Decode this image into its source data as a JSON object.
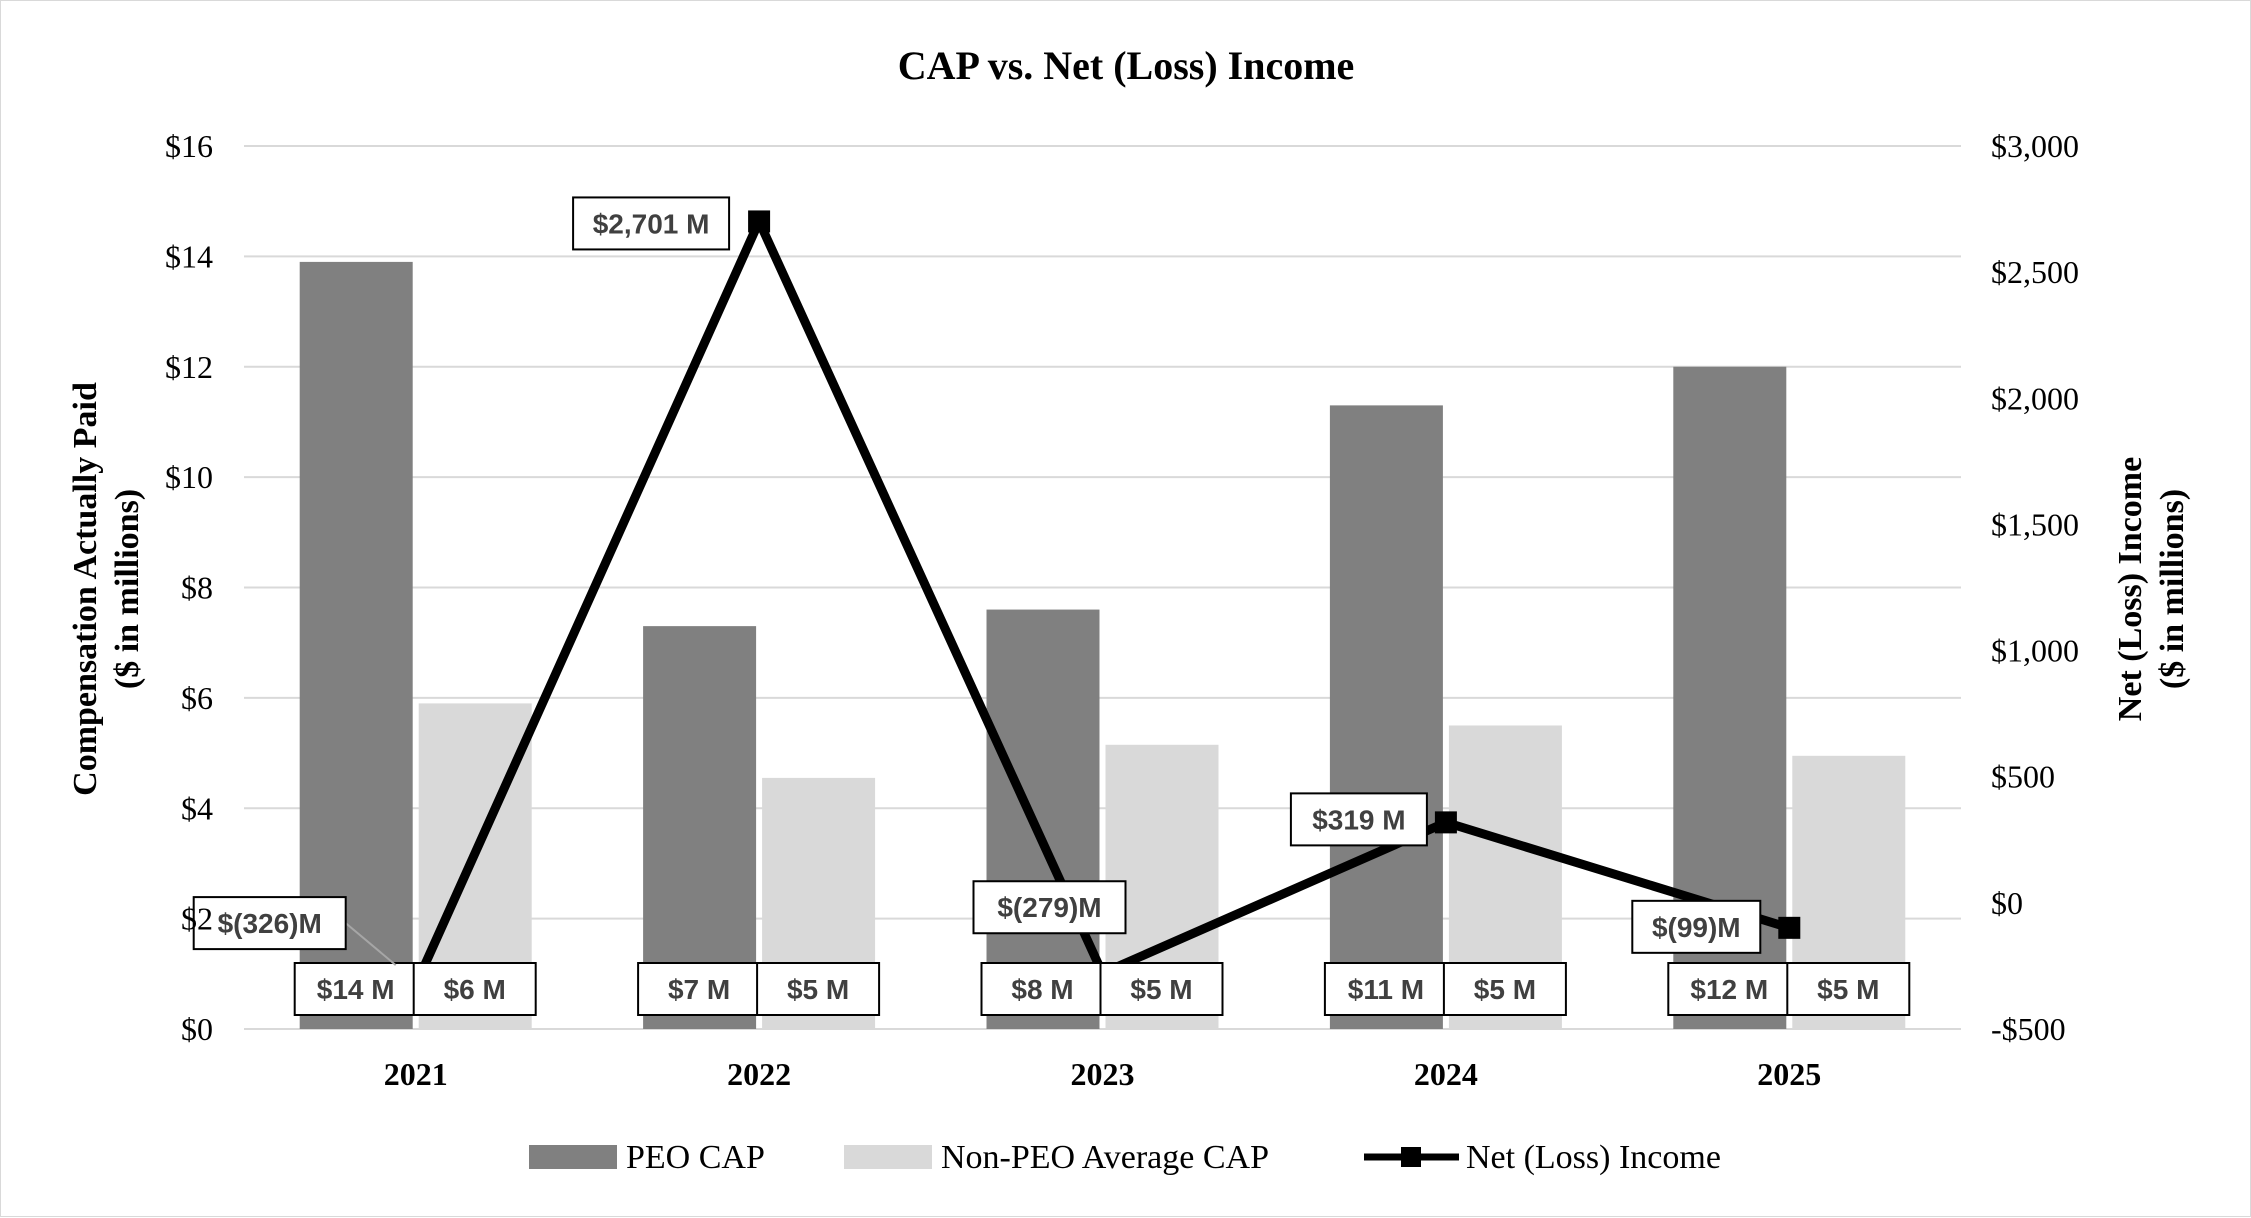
{
  "chart_data": {
    "type": "bar",
    "title": "CAP vs. Net (Loss) Income",
    "categories": [
      "2021",
      "2022",
      "2023",
      "2024",
      "2025"
    ],
    "y_left": {
      "label_line1": "Compensation Actually Paid",
      "label_line2": "($ in millions)",
      "range": [
        0,
        16
      ],
      "ticks": [
        0,
        2,
        4,
        6,
        8,
        10,
        12,
        14,
        16
      ],
      "tick_labels": [
        "$0",
        "$2",
        "$4",
        "$6",
        "$8",
        "$10",
        "$12",
        "$14",
        "$16"
      ]
    },
    "y_right": {
      "label_line1": "Net (Loss) Income",
      "label_line2": "($ in millions)",
      "range": [
        -500,
        3000
      ],
      "ticks": [
        -500,
        0,
        500,
        1000,
        1500,
        2000,
        2500,
        3000
      ],
      "tick_labels": [
        "-$500",
        "$0",
        "$500",
        "$1,000",
        "$1,500",
        "$2,000",
        "$2,500",
        "$3,000"
      ]
    },
    "series": [
      {
        "name": "PEO CAP",
        "axis": "left",
        "kind": "bar",
        "color": "#808080",
        "values": [
          13.9,
          7.3,
          7.6,
          11.3,
          12.0
        ],
        "labels": [
          "$14 M",
          "$7 M",
          "$8 M",
          "$11 M",
          "$12 M"
        ]
      },
      {
        "name": "Non-PEO Average CAP",
        "axis": "left",
        "kind": "bar",
        "color": "#d9d9d9",
        "values": [
          5.9,
          4.55,
          5.15,
          5.5,
          4.95
        ],
        "labels": [
          "$6 M",
          "$5 M",
          "$5 M",
          "$5 M",
          "$5 M"
        ]
      },
      {
        "name": "Net (Loss) Income",
        "axis": "right",
        "kind": "line",
        "color": "#000000",
        "values": [
          -326,
          2701,
          -279,
          319,
          -99
        ],
        "labels": [
          "$(326)M",
          "$2,701 M",
          "$(279)M",
          "$319 M",
          "$(99)M"
        ]
      }
    ],
    "grid": true,
    "legend_position": "bottom"
  }
}
